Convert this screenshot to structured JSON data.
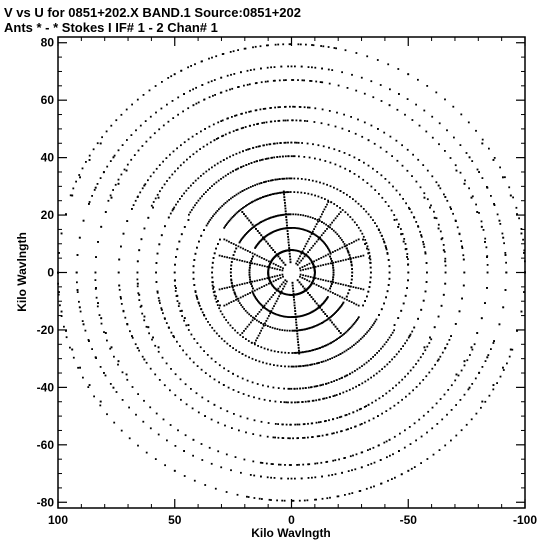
{
  "chart_data": {
    "type": "scatter",
    "title_line1": "V vs U for 0851+202.X BAND.1   Source:0851+202",
    "title_line2": "Ants * - *    Stokes I   IF# 1 - 2   Chan# 1",
    "xlabel": "Kilo Wavlngth",
    "ylabel": "Kilo Wavlngth",
    "xlim": [
      100,
      -100
    ],
    "ylim": [
      -82,
      82
    ],
    "x_ticks": [
      100,
      50,
      0,
      -50,
      -100
    ],
    "x_tick_labels": [
      "100",
      "50",
      "0",
      "-50",
      "-100"
    ],
    "y_ticks": [
      -80,
      -60,
      -40,
      -20,
      0,
      20,
      40,
      60,
      80
    ],
    "y_tick_labels": [
      "-80",
      "-60",
      "-40",
      "-20",
      "0",
      "20",
      "40",
      "60",
      "80"
    ],
    "grid": false,
    "marker_color": "#000000",
    "tracks": [
      {
        "radius": 10,
        "inner_angle": 120,
        "outer_angle": 68
      },
      {
        "radius": 18,
        "inner_angle": 78,
        "outer_angle": 60
      },
      {
        "radius": 26,
        "inner_angle": 104,
        "outer_angle": 58
      },
      {
        "radius": 34,
        "inner_angle": 112,
        "outer_angle": 56
      },
      {
        "radius": 42,
        "inner_angle": 96,
        "outer_angle": 60
      },
      {
        "radius": 50,
        "inner_angle": 116,
        "outer_angle": 63
      },
      {
        "radius": 58,
        "inner_angle": 102,
        "outer_angle": 66
      },
      {
        "radius": 66,
        "inner_angle": 118,
        "outer_angle": 70
      },
      {
        "radius": 74,
        "inner_angle": 108,
        "outer_angle": 72
      },
      {
        "radius": 84,
        "inner_angle": 118,
        "outer_angle": 78
      },
      {
        "radius": 92,
        "inner_angle": 120,
        "outer_angle": 80
      },
      {
        "radius": 100,
        "inner_angle": 122,
        "outer_angle": 82
      }
    ],
    "spokes_deg": [
      12,
      48,
      84,
      132,
      168,
      204,
      228,
      264,
      300,
      336
    ],
    "spoke_radius_range": [
      4,
      32
    ]
  }
}
